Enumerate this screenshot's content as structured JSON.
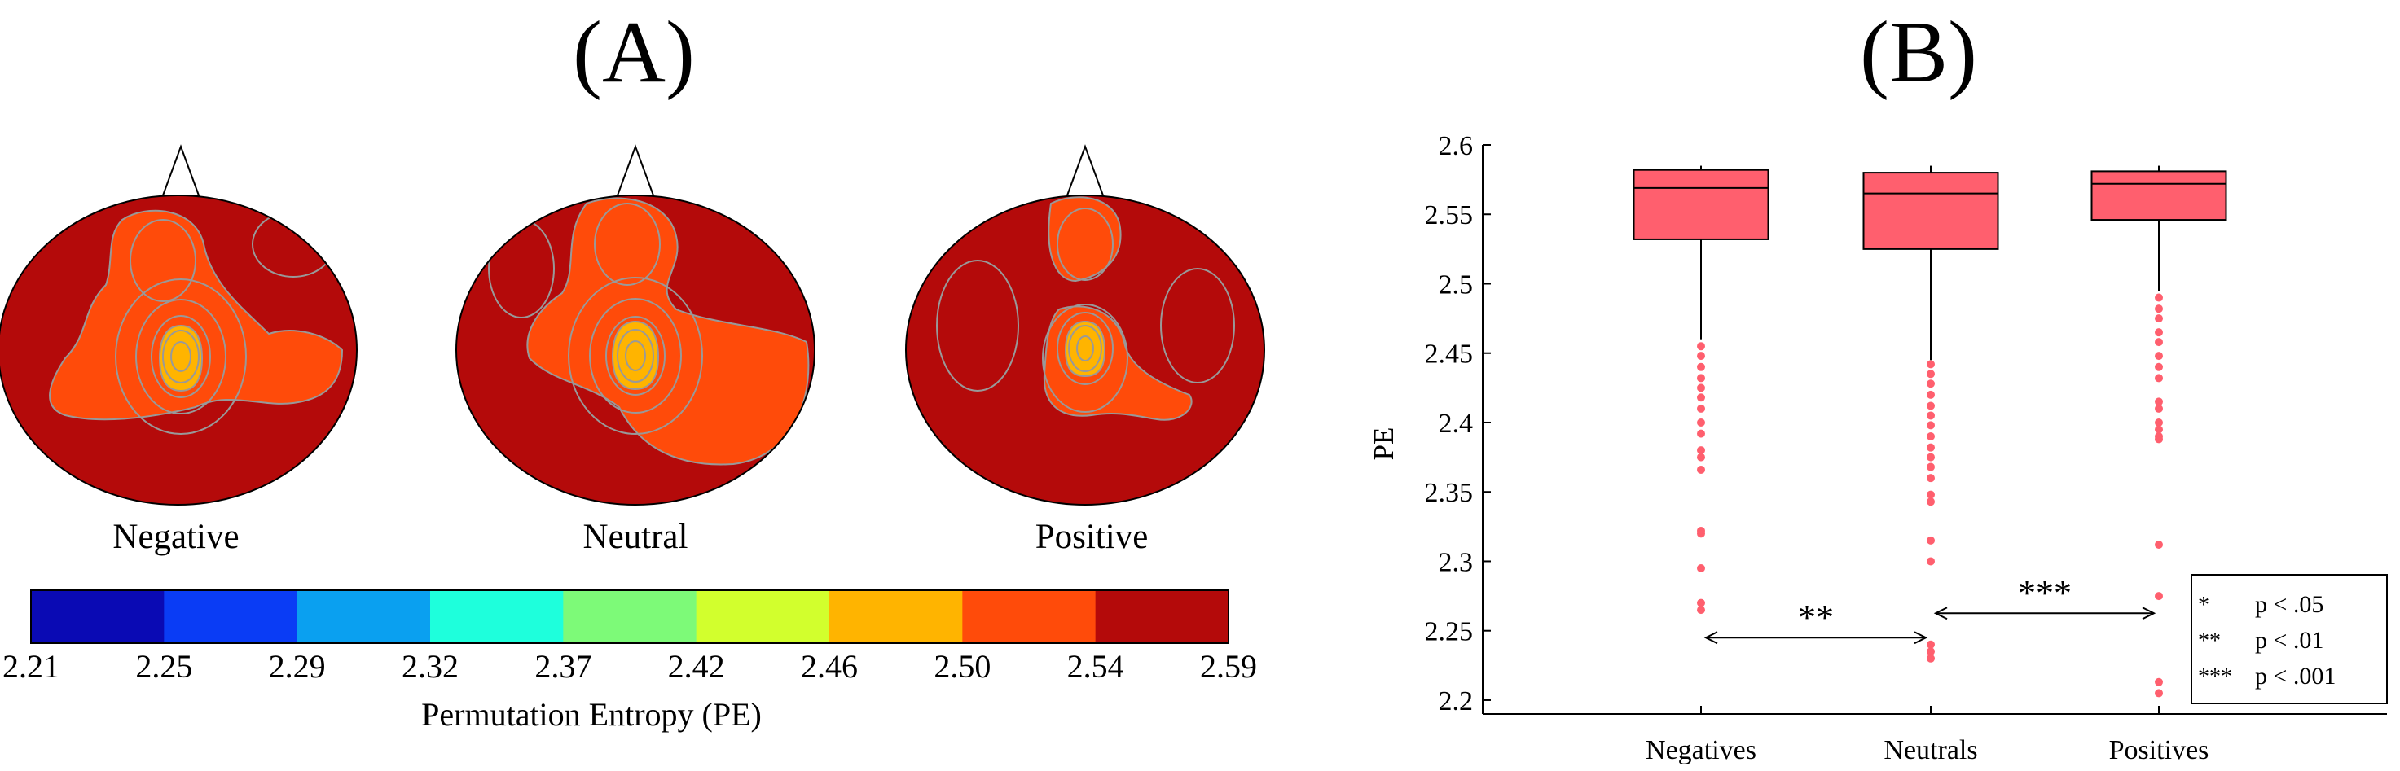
{
  "panel_a": {
    "label": "(A)",
    "maps": [
      {
        "name": "Negative"
      },
      {
        "name": "Neutral"
      },
      {
        "name": "Positive"
      }
    ],
    "colorbar": {
      "title": "Permutation Entropy (PE)",
      "ticks": [
        "2.21",
        "2.25",
        "2.29",
        "2.32",
        "2.37",
        "2.42",
        "2.46",
        "2.50",
        "2.54",
        "2.59"
      ],
      "colors": [
        "#0a0ab4",
        "#0a3cf5",
        "#0aa0f0",
        "#1effdc",
        "#7dfa78",
        "#d2ff2d",
        "#ffb400",
        "#ff4b0a",
        "#b40a0a"
      ]
    },
    "map_colors": {
      "background": "#b40a0a",
      "ring": "#ff4b0a",
      "core": "#ffb400",
      "contour": "#999999"
    }
  },
  "panel_b": {
    "label": "(B)",
    "legend": [
      {
        "stars": "*",
        "text": "p < .05"
      },
      {
        "stars": "**",
        "text": "p < .01"
      },
      {
        "stars": "***",
        "text": "p < .001"
      }
    ],
    "significance": [
      {
        "from": "Negatives",
        "to": "Neutrals",
        "stars": "**"
      },
      {
        "from": "Neutrals",
        "to": "Positives",
        "stars": "***"
      }
    ]
  },
  "chart_data": {
    "type": "box",
    "title": "",
    "xlabel": "",
    "ylabel": "PE",
    "ylim": [
      2.19,
      2.6
    ],
    "yticks": [
      "2.2",
      "2.25",
      "2.3",
      "2.35",
      "2.4",
      "2.45",
      "2.5",
      "2.55",
      "2.6"
    ],
    "categories": [
      "Negatives",
      "Neutrals",
      "Positives"
    ],
    "box_color": "#ff5f6e",
    "series": [
      {
        "category": "Negatives",
        "whisker_low": 2.46,
        "q1": 2.532,
        "median": 2.569,
        "q3": 2.582,
        "whisker_high": 2.585,
        "outliers": [
          2.455,
          2.448,
          2.44,
          2.432,
          2.425,
          2.418,
          2.41,
          2.4,
          2.392,
          2.38,
          2.375,
          2.366,
          2.322,
          2.32,
          2.295,
          2.27,
          2.265
        ]
      },
      {
        "category": "Neutrals",
        "whisker_low": 2.445,
        "q1": 2.525,
        "median": 2.565,
        "q3": 2.58,
        "whisker_high": 2.585,
        "outliers": [
          2.442,
          2.435,
          2.428,
          2.42,
          2.412,
          2.405,
          2.398,
          2.39,
          2.382,
          2.375,
          2.368,
          2.36,
          2.348,
          2.343,
          2.315,
          2.3,
          2.24,
          2.235,
          2.23
        ]
      },
      {
        "category": "Positives",
        "whisker_low": 2.495,
        "q1": 2.546,
        "median": 2.572,
        "q3": 2.581,
        "whisker_high": 2.585,
        "outliers": [
          2.49,
          2.482,
          2.475,
          2.465,
          2.458,
          2.448,
          2.44,
          2.432,
          2.415,
          2.41,
          2.4,
          2.395,
          2.39,
          2.388,
          2.312,
          2.275,
          2.213,
          2.205
        ]
      }
    ]
  }
}
